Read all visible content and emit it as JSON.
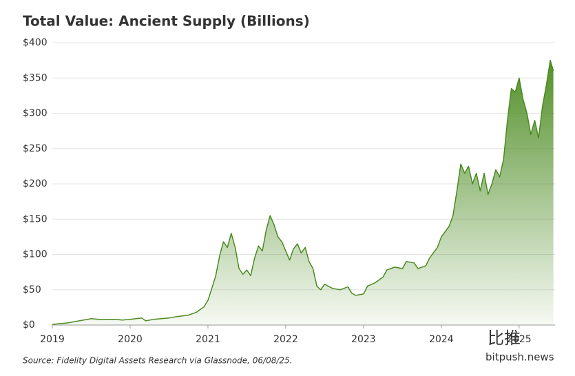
{
  "chart_data": {
    "type": "area",
    "title": "Total Value: Ancient Supply (Billions)",
    "source": "Source: Fidelity Digital Assets Research via Glassnode, 06/08/25.",
    "watermark": [
      "比推",
      "bitpush.news"
    ],
    "color": "#4a8a1f",
    "grid": true,
    "x": [
      2019.0,
      2019.2,
      2019.4,
      2019.5,
      2019.6,
      2019.8,
      2019.9,
      2020.0,
      2020.15,
      2020.2,
      2020.3,
      2020.5,
      2020.6,
      2020.75,
      2020.85,
      2020.95,
      2021.0,
      2021.05,
      2021.1,
      2021.15,
      2021.2,
      2021.25,
      2021.3,
      2021.35,
      2021.4,
      2021.45,
      2021.5,
      2021.55,
      2021.6,
      2021.65,
      2021.7,
      2021.75,
      2021.8,
      2021.85,
      2021.9,
      2021.95,
      2022.0,
      2022.05,
      2022.1,
      2022.15,
      2022.2,
      2022.25,
      2022.3,
      2022.35,
      2022.4,
      2022.45,
      2022.5,
      2022.6,
      2022.7,
      2022.8,
      2022.85,
      2022.9,
      2023.0,
      2023.05,
      2023.15,
      2023.25,
      2023.3,
      2023.4,
      2023.5,
      2023.55,
      2023.65,
      2023.7,
      2023.8,
      2023.85,
      2023.95,
      2024.0,
      2024.1,
      2024.15,
      2024.2,
      2024.25,
      2024.3,
      2024.35,
      2024.4,
      2024.45,
      2024.5,
      2024.55,
      2024.6,
      2024.65,
      2024.7,
      2024.75,
      2024.8,
      2024.85,
      2024.9,
      2024.95,
      2025.0,
      2025.05,
      2025.1,
      2025.15,
      2025.2,
      2025.25,
      2025.3,
      2025.35,
      2025.4,
      2025.44
    ],
    "values": [
      1,
      3,
      7,
      9,
      8,
      8,
      7,
      8,
      10,
      6,
      8,
      10,
      12,
      14,
      18,
      26,
      35,
      52,
      70,
      98,
      118,
      110,
      130,
      110,
      80,
      72,
      78,
      70,
      95,
      112,
      105,
      135,
      155,
      142,
      125,
      118,
      105,
      92,
      108,
      115,
      102,
      110,
      90,
      80,
      55,
      50,
      58,
      52,
      50,
      54,
      45,
      42,
      44,
      55,
      60,
      68,
      78,
      82,
      80,
      90,
      88,
      80,
      84,
      95,
      110,
      125,
      140,
      155,
      190,
      228,
      215,
      225,
      200,
      215,
      190,
      215,
      185,
      200,
      220,
      210,
      235,
      290,
      335,
      330,
      350,
      320,
      300,
      270,
      290,
      265,
      310,
      340,
      375,
      360
    ],
    "xlim": [
      2019,
      2025.55
    ],
    "xticks": [
      2019,
      2020,
      2021,
      2022,
      2023,
      2024,
      2025
    ],
    "ylim": [
      0,
      400
    ],
    "yticks": [
      {
        "value": 0,
        "label": "$0"
      },
      {
        "value": 50,
        "label": "$50"
      },
      {
        "value": 100,
        "label": "$100"
      },
      {
        "value": 150,
        "label": "$150"
      },
      {
        "value": 200,
        "label": "$200"
      },
      {
        "value": 250,
        "label": "$250"
      },
      {
        "value": 300,
        "label": "$300"
      },
      {
        "value": 350,
        "label": "$350"
      },
      {
        "value": 400,
        "label": "$400"
      }
    ]
  }
}
